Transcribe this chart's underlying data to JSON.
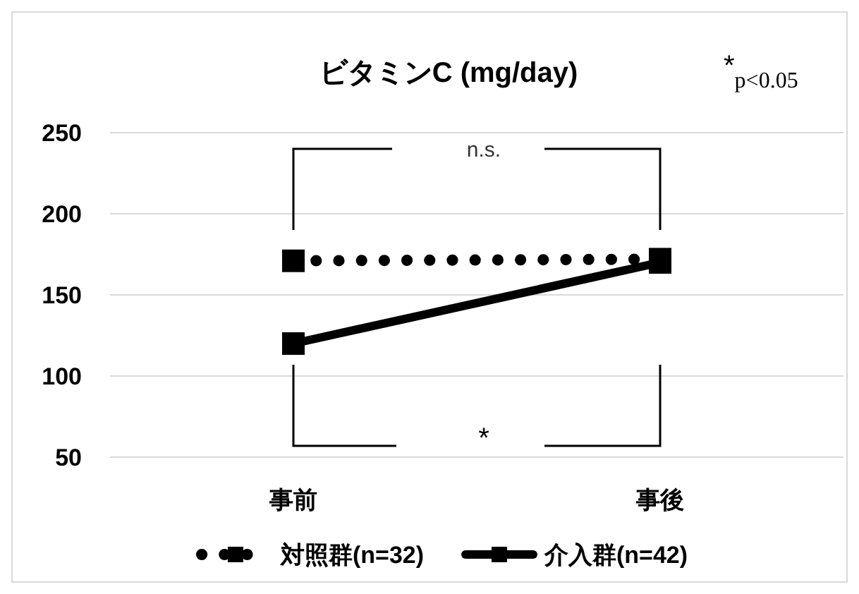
{
  "chart_data": {
    "type": "line",
    "title": "ビタミンC (mg/day)",
    "categories": [
      "事前",
      "事後"
    ],
    "series": [
      {
        "name": "対照群(n=32)",
        "color": "#000000",
        "values": [
          171,
          172
        ],
        "line_style": "dotted"
      },
      {
        "name": "介入群(n=42)",
        "color": "#000000",
        "values": [
          120,
          170
        ],
        "line_style": "solid"
      }
    ],
    "ylim": [
      50,
      250
    ],
    "yticks": [
      50,
      100,
      150,
      200,
      250
    ],
    "grid": "y",
    "legend": "bottom",
    "marker": "square",
    "annotations": [
      "*$_{p<0.05}$",
      "n.s.",
      "*"
    ]
  }
}
